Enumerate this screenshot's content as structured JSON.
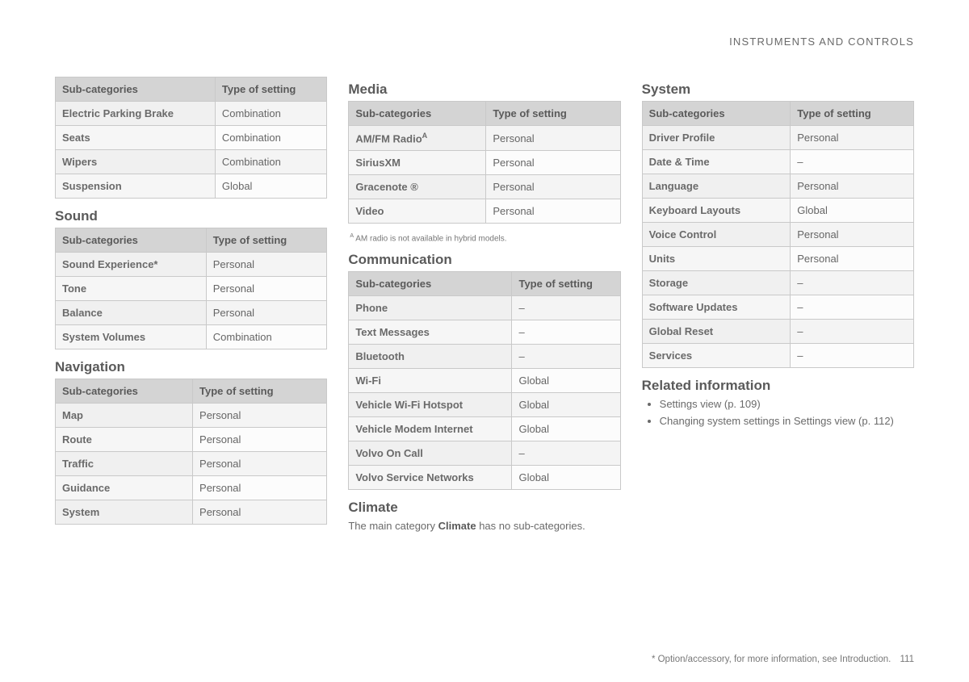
{
  "header": {
    "title": "INSTRUMENTS AND CONTROLS"
  },
  "footer": {
    "note": "* Option/accessory, for more information, see Introduction.",
    "page": "111"
  },
  "tableHeaders": {
    "col1": "Sub-categories",
    "col2": "Type of setting"
  },
  "col1": {
    "tables": [
      {
        "title": null,
        "rows": [
          {
            "cat": "Electric Parking Brake",
            "type": "Combination"
          },
          {
            "cat": "Seats",
            "type": "Combination"
          },
          {
            "cat": "Wipers",
            "type": "Combination"
          },
          {
            "cat": "Suspension",
            "type": "Global"
          }
        ]
      },
      {
        "title": "Sound",
        "rows": [
          {
            "cat": "Sound Experience*",
            "type": "Personal"
          },
          {
            "cat": "Tone",
            "type": "Personal"
          },
          {
            "cat": "Balance",
            "type": "Personal"
          },
          {
            "cat": "System Volumes",
            "type": "Combination"
          }
        ]
      },
      {
        "title": "Navigation",
        "rows": [
          {
            "cat": "Map",
            "type": "Personal"
          },
          {
            "cat": "Route",
            "type": "Personal"
          },
          {
            "cat": "Traffic",
            "type": "Personal"
          },
          {
            "cat": "Guidance",
            "type": "Personal"
          },
          {
            "cat": "System",
            "type": "Personal"
          }
        ]
      }
    ]
  },
  "col2": {
    "tables": [
      {
        "title": "Media",
        "rows": [
          {
            "cat": "AM/FM Radio",
            "sup": "A",
            "type": "Personal"
          },
          {
            "cat": "SiriusXM",
            "type": "Personal"
          },
          {
            "cat": "Gracenote ®",
            "type": "Personal"
          },
          {
            "cat": "Video",
            "type": "Personal"
          }
        ],
        "footnote": {
          "marker": "A",
          "text": "AM radio is not available in hybrid models."
        }
      },
      {
        "title": "Communication",
        "rows": [
          {
            "cat": "Phone",
            "type": "–"
          },
          {
            "cat": "Text Messages",
            "type": "–"
          },
          {
            "cat": "Bluetooth",
            "type": "–"
          },
          {
            "cat": "Wi-Fi",
            "type": "Global"
          },
          {
            "cat": "Vehicle Wi-Fi Hotspot",
            "type": "Global"
          },
          {
            "cat": "Vehicle Modem Internet",
            "type": "Global"
          },
          {
            "cat": "Volvo On Call",
            "type": "–"
          },
          {
            "cat": "Volvo Service Networks",
            "type": "Global"
          }
        ]
      }
    ],
    "climate": {
      "title": "Climate",
      "text_before": "The main category ",
      "text_bold": "Climate",
      "text_after": " has no sub-categories."
    }
  },
  "col3": {
    "tables": [
      {
        "title": "System",
        "rows": [
          {
            "cat": "Driver Profile",
            "type": "Personal"
          },
          {
            "cat": "Date & Time",
            "type": "–"
          },
          {
            "cat": "Language",
            "type": "Personal"
          },
          {
            "cat": "Keyboard Layouts",
            "type": "Global"
          },
          {
            "cat": "Voice Control",
            "type": "Personal"
          },
          {
            "cat": "Units",
            "type": "Personal"
          },
          {
            "cat": "Storage",
            "type": "–"
          },
          {
            "cat": "Software Updates",
            "type": "–"
          },
          {
            "cat": "Global Reset",
            "type": "–"
          },
          {
            "cat": "Services",
            "type": "–"
          }
        ]
      }
    ],
    "related": {
      "title": "Related information",
      "items": [
        "Settings view (p. 109)",
        "Changing system settings in Settings view (p. 112)"
      ]
    }
  }
}
